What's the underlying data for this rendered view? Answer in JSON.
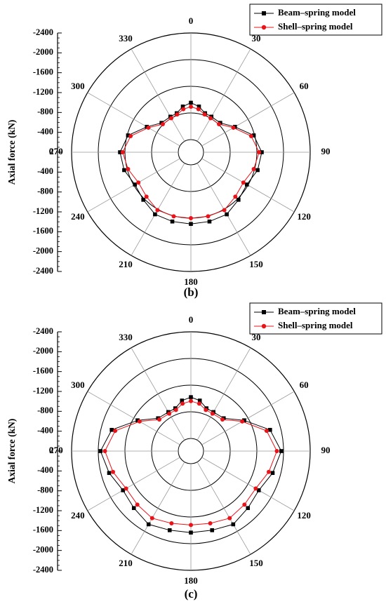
{
  "chart_data": [
    {
      "type": "polar-line",
      "panel_label": "(b)",
      "ylabel": "Axial force (kN)",
      "yticks": [
        "-2400",
        "-2000",
        "-1600",
        "-1200",
        "-800",
        "-400",
        "0",
        "-400",
        "-800",
        "-1200",
        "-1600",
        "-2000",
        "-2400"
      ],
      "angle_labels": [
        "0",
        "30",
        "60",
        "90",
        "120",
        "150",
        "180",
        "210",
        "240",
        "270",
        "300",
        "330"
      ],
      "legend": {
        "position": "top-right",
        "items": [
          "Beam–spring model",
          "Shell–spring model"
        ]
      },
      "series": [
        {
          "name": "Beam–spring model",
          "color": "#000000",
          "marker": "square",
          "points": [
            [
              0,
              -830
            ],
            [
              10,
              -760
            ],
            [
              20,
              -650
            ],
            [
              30,
              -640
            ],
            [
              45,
              -650
            ],
            [
              60,
              -860
            ],
            [
              75,
              -1180
            ],
            [
              90,
              -1310
            ],
            [
              105,
              -1270
            ],
            [
              120,
              -1170
            ],
            [
              135,
              -1230
            ],
            [
              150,
              -1330
            ],
            [
              165,
              -1330
            ],
            [
              180,
              -1330
            ],
            [
              195,
              -1330
            ],
            [
              210,
              -1330
            ],
            [
              225,
              -1230
            ],
            [
              240,
              -1170
            ],
            [
              255,
              -1270
            ],
            [
              270,
              -1310
            ],
            [
              285,
              -1180
            ],
            [
              300,
              -860
            ],
            [
              315,
              -650
            ],
            [
              330,
              -640
            ],
            [
              340,
              -650
            ],
            [
              350,
              -760
            ]
          ]
        },
        {
          "name": "Shell–spring model",
          "color": "#e8141a",
          "marker": "circle",
          "points": [
            [
              0,
              -740
            ],
            [
              10,
              -700
            ],
            [
              20,
              -620
            ],
            [
              30,
              -600
            ],
            [
              45,
              -610
            ],
            [
              60,
              -820
            ],
            [
              75,
              -1120
            ],
            [
              90,
              -1250
            ],
            [
              105,
              -1180
            ],
            [
              120,
              -1080
            ],
            [
              135,
              -1130
            ],
            [
              150,
              -1220
            ],
            [
              165,
              -1210
            ],
            [
              180,
              -1200
            ],
            [
              195,
              -1210
            ],
            [
              210,
              -1220
            ],
            [
              225,
              -1130
            ],
            [
              240,
              -1080
            ],
            [
              255,
              -1180
            ],
            [
              270,
              -1250
            ],
            [
              285,
              -1120
            ],
            [
              300,
              -820
            ],
            [
              315,
              -610
            ],
            [
              330,
              -600
            ],
            [
              340,
              -620
            ],
            [
              350,
              -700
            ]
          ]
        }
      ]
    },
    {
      "type": "polar-line",
      "panel_label": "(c)",
      "ylabel": "Axial force (kN)",
      "yticks": [
        "-2400",
        "-2000",
        "-1600",
        "-1200",
        "-800",
        "-400",
        "0",
        "-400",
        "-800",
        "-1200",
        "-1600",
        "-2000",
        "-2400"
      ],
      "angle_labels": [
        "0",
        "30",
        "60",
        "90",
        "120",
        "150",
        "180",
        "210",
        "240",
        "270",
        "300",
        "330"
      ],
      "legend": {
        "position": "top-right",
        "items": [
          "Beam–spring model",
          "Shell–spring model"
        ]
      },
      "series": [
        {
          "name": "Beam–spring model",
          "color": "#000000",
          "marker": "square",
          "points": [
            [
              0,
              -930
            ],
            [
              10,
              -870
            ],
            [
              20,
              -740
            ],
            [
              30,
              -730
            ],
            [
              45,
              -760
            ],
            [
              60,
              -1100
            ],
            [
              75,
              -1560
            ],
            [
              90,
              -1750
            ],
            [
              105,
              -1620
            ],
            [
              120,
              -1480
            ],
            [
              135,
              -1530
            ],
            [
              150,
              -1620
            ],
            [
              165,
              -1560
            ],
            [
              180,
              -1550
            ],
            [
              195,
              -1560
            ],
            [
              210,
              -1620
            ],
            [
              225,
              -1530
            ],
            [
              240,
              -1480
            ],
            [
              255,
              -1620
            ],
            [
              270,
              -1750
            ],
            [
              285,
              -1560
            ],
            [
              300,
              -1100
            ],
            [
              315,
              -760
            ],
            [
              330,
              -730
            ],
            [
              340,
              -740
            ],
            [
              350,
              -870
            ]
          ]
        },
        {
          "name": "Shell–spring model",
          "color": "#e8141a",
          "marker": "circle",
          "points": [
            [
              0,
              -840
            ],
            [
              10,
              -800
            ],
            [
              20,
              -700
            ],
            [
              30,
              -690
            ],
            [
              45,
              -720
            ],
            [
              60,
              -1050
            ],
            [
              75,
              -1480
            ],
            [
              90,
              -1650
            ],
            [
              105,
              -1530
            ],
            [
              120,
              -1400
            ],
            [
              135,
              -1420
            ],
            [
              150,
              -1460
            ],
            [
              165,
              -1400
            ],
            [
              180,
              -1380
            ],
            [
              195,
              -1400
            ],
            [
              210,
              -1460
            ],
            [
              225,
              -1420
            ],
            [
              240,
              -1400
            ],
            [
              255,
              -1530
            ],
            [
              270,
              -1650
            ],
            [
              285,
              -1480
            ],
            [
              300,
              -1050
            ],
            [
              315,
              -720
            ],
            [
              330,
              -690
            ],
            [
              340,
              -700
            ],
            [
              350,
              -800
            ]
          ]
        }
      ]
    }
  ]
}
